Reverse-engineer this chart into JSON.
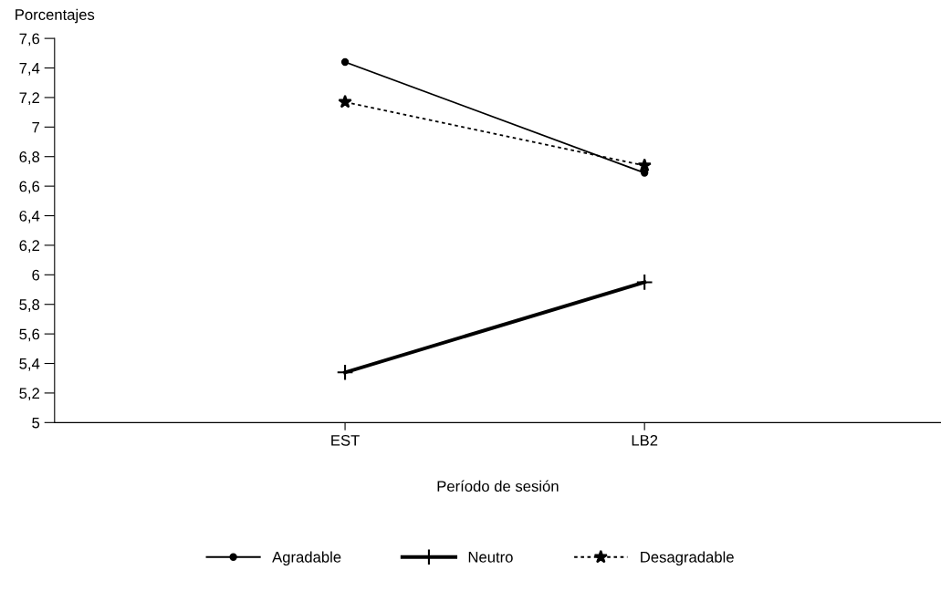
{
  "chart_data": {
    "type": "line",
    "ylabel": "Porcentajes",
    "xlabel": "Período de sesión",
    "categories": [
      "EST",
      "LB2"
    ],
    "series": [
      {
        "name": "Agradable",
        "color": "#000000",
        "values": [
          7.44,
          6.69
        ],
        "marker": "circle",
        "line_style": "solid"
      },
      {
        "name": "Neutro",
        "color": "#000000",
        "values": [
          5.34,
          5.95
        ],
        "marker": "cross",
        "line_style": "solid"
      },
      {
        "name": "Desagradable",
        "color": "#000000",
        "values": [
          7.17,
          6.74
        ],
        "marker": "star",
        "line_style": "dotted"
      }
    ],
    "ylim": [
      5,
      7.6
    ],
    "yticks": [
      5,
      {
        "value": 5.2,
        "label": "5,2"
      },
      {
        "value": 5.4,
        "label": "5,4"
      },
      {
        "value": 5.6,
        "label": "5,6"
      },
      {
        "value": 5.8,
        "label": "5,8"
      },
      6,
      {
        "value": 6.2,
        "label": "6,2"
      },
      {
        "value": 6.4,
        "label": "6,4"
      },
      {
        "value": 6.6,
        "label": "6,6"
      },
      {
        "value": 6.8,
        "label": "6,8"
      },
      7,
      {
        "value": 7.2,
        "label": "7,2"
      },
      {
        "value": 7.4,
        "label": "7,4"
      },
      {
        "value": 7.6,
        "label": "7,6"
      }
    ],
    "grid": false,
    "legend": "bottom"
  }
}
